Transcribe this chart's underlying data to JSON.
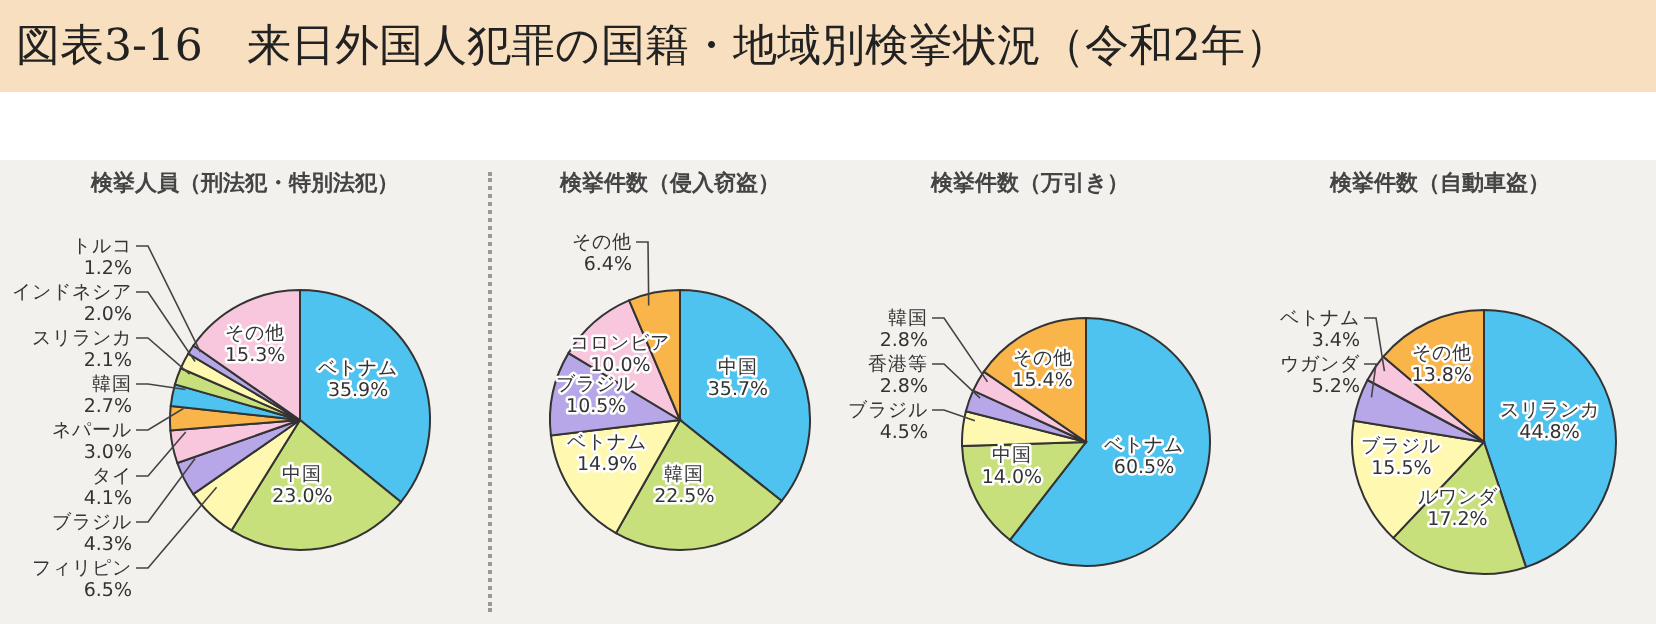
{
  "chart_data": [
    {
      "type": "pie",
      "title": "図表3-16　来日外国人犯罪の国籍・地域別検挙状況（令和2年）",
      "subtitle": "検挙人員（刑法犯・特別法犯）",
      "categories": [
        "ベトナム",
        "中国",
        "フィリピン",
        "ブラジル",
        "タイ",
        "ネパール",
        "韓国",
        "スリランカ",
        "インドネシア",
        "トルコ",
        "その他"
      ],
      "values": [
        35.9,
        23.0,
        6.5,
        4.3,
        4.1,
        3.0,
        2.7,
        2.1,
        2.0,
        1.2,
        15.3
      ],
      "value_labels": [
        "35.9%",
        "23.0%",
        "6.5%",
        "4.3%",
        "4.1%",
        "3.0%",
        "2.7%",
        "2.1%",
        "2.0%",
        "1.2%",
        "15.3%"
      ],
      "colors": [
        "#4fc3f0",
        "#c8e07c",
        "#fff8b0",
        "#b7a7e8",
        "#f8c6dd",
        "#f9b44a",
        "#4fc3f0",
        "#c8e07c",
        "#fff8b0",
        "#b7a7e8",
        "#f8c6dd"
      ]
    },
    {
      "type": "pie",
      "subtitle": "検挙件数（侵入窃盗）",
      "categories": [
        "中国",
        "韓国",
        "ベトナム",
        "ブラジル",
        "コロンビア",
        "その他"
      ],
      "values": [
        35.7,
        22.5,
        14.9,
        10.5,
        10.0,
        6.4
      ],
      "value_labels": [
        "35.7%",
        "22.5%",
        "14.9%",
        "10.5%",
        "10.0%",
        "6.4%"
      ],
      "colors": [
        "#4fc3f0",
        "#c8e07c",
        "#fff8b0",
        "#b7a7e8",
        "#f8c6dd",
        "#f9b44a"
      ]
    },
    {
      "type": "pie",
      "subtitle": "検挙件数（万引き）",
      "categories": [
        "ベトナム",
        "中国",
        "ブラジル",
        "香港等",
        "韓国",
        "その他"
      ],
      "values": [
        60.5,
        14.0,
        4.5,
        2.8,
        2.8,
        15.4
      ],
      "value_labels": [
        "60.5%",
        "14.0%",
        "4.5%",
        "2.8%",
        "2.8%",
        "15.4%"
      ],
      "colors": [
        "#4fc3f0",
        "#c8e07c",
        "#fff8b0",
        "#b7a7e8",
        "#f8c6dd",
        "#f9b44a"
      ]
    },
    {
      "type": "pie",
      "subtitle": "検挙件数（自動車盗）",
      "categories": [
        "スリランカ",
        "ルワンダ",
        "ブラジル",
        "ウガンダ",
        "ベトナム",
        "その他"
      ],
      "values": [
        44.8,
        17.2,
        15.5,
        5.2,
        3.4,
        13.8
      ],
      "value_labels": [
        "44.8%",
        "17.2%",
        "15.5%",
        "5.2%",
        "3.4%",
        "13.8%"
      ],
      "colors": [
        "#4fc3f0",
        "#c8e07c",
        "#fff8b0",
        "#b7a7e8",
        "#f8c6dd",
        "#f9b44a"
      ]
    }
  ]
}
